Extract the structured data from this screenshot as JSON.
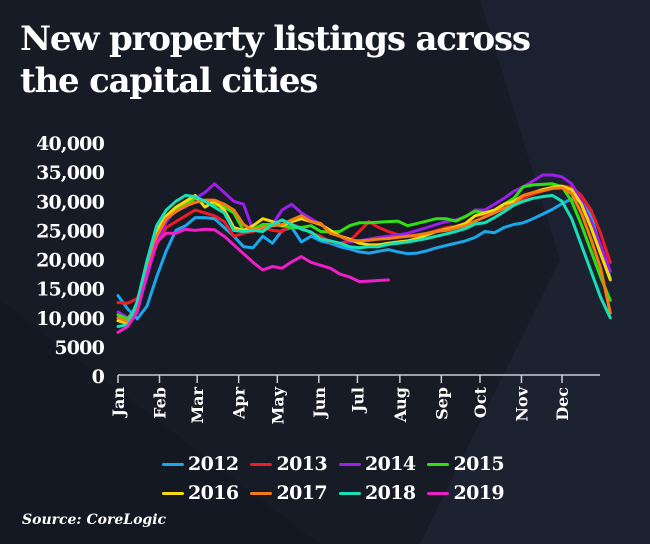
{
  "title": "New property listings across the capital cities",
  "source": "Source: CoreLogic",
  "colors": {
    "background": "#161b26",
    "text": "#ffffff",
    "axis": "#c8ccd4"
  },
  "chart_data": {
    "type": "line",
    "title": "New property listings across the capital cities",
    "xlabel": "",
    "ylabel": "",
    "ylim": [
      0,
      40000
    ],
    "yticks": [
      0,
      5000,
      10000,
      15000,
      20000,
      25000,
      30000,
      35000,
      40000
    ],
    "ytick_labels": [
      "0",
      "5000",
      "10,000",
      "15,000",
      "20,000",
      "25,000",
      "30,000",
      "35,000",
      "40,000"
    ],
    "x_unit": "week of year (0 = first week of January)",
    "xlim": [
      0,
      52
    ],
    "month_ticks": [
      {
        "label": "Jan",
        "week": 0
      },
      {
        "label": "Feb",
        "week": 4.4
      },
      {
        "label": "Mar",
        "week": 8.4
      },
      {
        "label": "Apr",
        "week": 12.8
      },
      {
        "label": "May",
        "week": 16.9
      },
      {
        "label": "Jun",
        "week": 21.3
      },
      {
        "label": "Jul",
        "week": 25.4
      },
      {
        "label": "Aug",
        "week": 29.9
      },
      {
        "label": "Sep",
        "week": 34.3
      },
      {
        "label": "Oct",
        "week": 38.4
      },
      {
        "label": "Nov",
        "week": 42.8
      },
      {
        "label": "Dec",
        "week": 47.1
      }
    ],
    "grid": false,
    "legend": "bottom-center",
    "series": [
      {
        "name": "2012",
        "color": "#1aa7ec",
        "values": [
          13800,
          11500,
          9800,
          12000,
          17000,
          21500,
          25000,
          25800,
          27200,
          27200,
          27000,
          25500,
          24000,
          22200,
          22000,
          24000,
          22800,
          25000,
          25500,
          23000,
          24000,
          23200,
          22800,
          22200,
          21800,
          21300,
          21100,
          21400,
          21700,
          21300,
          21000,
          21100,
          21500,
          22000,
          22400,
          22800,
          23200,
          23800,
          24800,
          24600,
          25500,
          26000,
          26300,
          27000,
          27800,
          28600,
          29600,
          30400,
          30000,
          27500,
          22000,
          16800
        ]
      },
      {
        "name": "2013",
        "color": "#ee1c25",
        "values": [
          12600,
          12500,
          13300,
          17500,
          22500,
          25500,
          26500,
          27500,
          28500,
          28000,
          27500,
          26500,
          24000,
          24500,
          24800,
          25500,
          25000,
          24800,
          26000,
          25500,
          24500,
          24000,
          23000,
          22800,
          23200,
          24800,
          26500,
          25500,
          24800,
          24300,
          24000,
          24000,
          24500,
          25000,
          25500,
          25700,
          26200,
          27500,
          27800,
          28200,
          28800,
          29500,
          30500,
          31200,
          31800,
          32300,
          32600,
          32400,
          31000,
          28500,
          24500,
          19500
        ]
      },
      {
        "name": "2014",
        "color": "#9b1fe8",
        "values": [
          11000,
          10000,
          11500,
          17000,
          23000,
          26500,
          28500,
          29000,
          30500,
          31500,
          33000,
          31500,
          30000,
          29500,
          25000,
          25000,
          26000,
          28500,
          29500,
          28000,
          27000,
          26000,
          25000,
          24000,
          23000,
          23200,
          23500,
          23800,
          24000,
          24200,
          24500,
          25000,
          25500,
          26000,
          26500,
          26800,
          27300,
          28500,
          28500,
          29500,
          30500,
          31700,
          32500,
          33500,
          34500,
          34500,
          34200,
          33000,
          30000,
          26500,
          22500,
          18000
        ]
      },
      {
        "name": "2015",
        "color": "#2fe012",
        "values": [
          10500,
          9800,
          12000,
          18500,
          24500,
          27000,
          28500,
          29500,
          30500,
          30000,
          29500,
          29000,
          28000,
          25000,
          25200,
          26000,
          26000,
          25800,
          25500,
          25500,
          25800,
          24800,
          24700,
          24800,
          25800,
          26300,
          26300,
          26400,
          26500,
          26600,
          25800,
          26200,
          26600,
          27000,
          27000,
          26600,
          27400,
          28300,
          28000,
          28500,
          29500,
          30500,
          32500,
          32800,
          32900,
          33000,
          32500,
          30000,
          26000,
          21500,
          17000,
          13000
        ]
      },
      {
        "name": "2016",
        "color": "#f5d90a",
        "values": [
          9500,
          9000,
          12500,
          19500,
          25000,
          27500,
          29000,
          30000,
          31000,
          29000,
          30000,
          28500,
          25500,
          25000,
          25800,
          27000,
          26500,
          25800,
          26500,
          27000,
          26500,
          26000,
          25000,
          24000,
          23500,
          22800,
          22500,
          22500,
          22800,
          23000,
          23200,
          23600,
          24200,
          24800,
          25200,
          25600,
          26200,
          27500,
          28000,
          28500,
          29500,
          30000,
          31000,
          31500,
          32000,
          32400,
          32600,
          32000,
          29500,
          25500,
          21000,
          16500
        ]
      },
      {
        "name": "2017",
        "color": "#f57c14",
        "values": [
          10000,
          9300,
          12200,
          18800,
          24000,
          27000,
          28200,
          29200,
          29800,
          30200,
          30200,
          29500,
          28500,
          26000,
          25000,
          25500,
          25800,
          26000,
          26800,
          27500,
          26500,
          26200,
          24500,
          24000,
          23300,
          23200,
          23300,
          23500,
          23600,
          23800,
          24000,
          24200,
          24500,
          24800,
          25000,
          25400,
          25800,
          26600,
          27300,
          28000,
          28800,
          29500,
          31000,
          31500,
          31800,
          32200,
          32300,
          31300,
          28000,
          23500,
          18500,
          10800
        ]
      },
      {
        "name": "2018",
        "color": "#17e0b8",
        "values": [
          8500,
          8800,
          12800,
          19800,
          25800,
          28500,
          30000,
          31000,
          30800,
          30000,
          29000,
          28000,
          25000,
          24800,
          25000,
          24800,
          26000,
          26800,
          26000,
          25200,
          24700,
          23500,
          23200,
          22800,
          22200,
          22000,
          22200,
          22200,
          22600,
          22800,
          23000,
          23300,
          23600,
          24000,
          24400,
          24800,
          25300,
          26100,
          26300,
          27200,
          28200,
          29300,
          30000,
          30500,
          30800,
          31000,
          30000,
          27000,
          22500,
          18000,
          13500,
          10000
        ]
      },
      {
        "name": "2019",
        "color": "#ee1fc8",
        "values": [
          7500,
          8500,
          11000,
          17500,
          23000,
          24500,
          24500,
          25200,
          25000,
          25200,
          25100,
          24000,
          22500,
          21000,
          19500,
          18200,
          18800,
          18500,
          19600,
          20500,
          19500,
          19000,
          18500,
          17500,
          17000,
          16200,
          16300,
          16400,
          16500,
          null,
          null,
          null,
          null,
          null,
          null,
          null,
          null,
          null,
          null,
          null,
          null,
          null,
          null,
          null,
          null,
          null,
          null,
          null,
          null,
          null,
          null,
          null
        ]
      }
    ]
  }
}
